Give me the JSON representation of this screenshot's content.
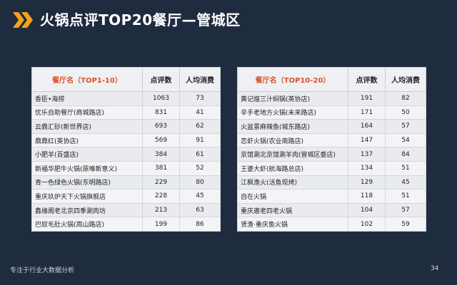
{
  "title": "火锅点评TOP20餐厅—管城区",
  "footer": {
    "left": "专注于行业大数据分析",
    "page": "34"
  },
  "colors": {
    "background": "#1f2b3e",
    "accent": "#f2a21b",
    "header_name": "#d9542b"
  },
  "icons": {
    "title_marker": "double-chevron-icon"
  },
  "left_table": {
    "headers": [
      "餐厅名（TOP1-10）",
      "点评数",
      "人均消费"
    ],
    "rows": [
      [
        "香臣•海捞",
        "1063",
        "73"
      ],
      [
        "优乐自助餐厅(商城路店)",
        "831",
        "41"
      ],
      [
        "云鼎汇砂(新世界店)",
        "693",
        "62"
      ],
      [
        "鼎鼎红(英协店)",
        "569",
        "91"
      ],
      [
        "小肥羊(百盛店)",
        "384",
        "61"
      ],
      [
        "新福华肥牛火锅(原唯新意义)",
        "381",
        "52"
      ],
      [
        "青一色绿色火锅(东明路店)",
        "229",
        "80"
      ],
      [
        "重庆玖炉天下火锅旗舰店",
        "228",
        "45"
      ],
      [
        "鑫缘阁老北京四季涮肉坊",
        "213",
        "63"
      ],
      [
        "巴奴毛肚火锅(嵩山路店)",
        "199",
        "86"
      ]
    ]
  },
  "right_table": {
    "headers": [
      "餐厅名（TOP10-20）",
      "点评数",
      "人均消费"
    ],
    "rows": [
      [
        "黄记煌三汁焖锅(英协店)",
        "191",
        "82"
      ],
      [
        "辛手老地方火锅(未来路店)",
        "171",
        "50"
      ],
      [
        "火盆景麻辣鱼(城东路店)",
        "164",
        "57"
      ],
      [
        "恋虾火锅(农业南路店)",
        "147",
        "54"
      ],
      [
        "京馆涮北京馆涮羊肉(管城区委店)",
        "137",
        "84"
      ],
      [
        "王婆大虾(航海路总店)",
        "134",
        "51"
      ],
      [
        "江枫渔火(活鱼现烤)",
        "129",
        "45"
      ],
      [
        "自在火锅",
        "118",
        "51"
      ],
      [
        "重庆邀老四老火锅",
        "104",
        "57"
      ],
      [
        "贤渔·重庆鱼火锅",
        "102",
        "59"
      ]
    ]
  }
}
